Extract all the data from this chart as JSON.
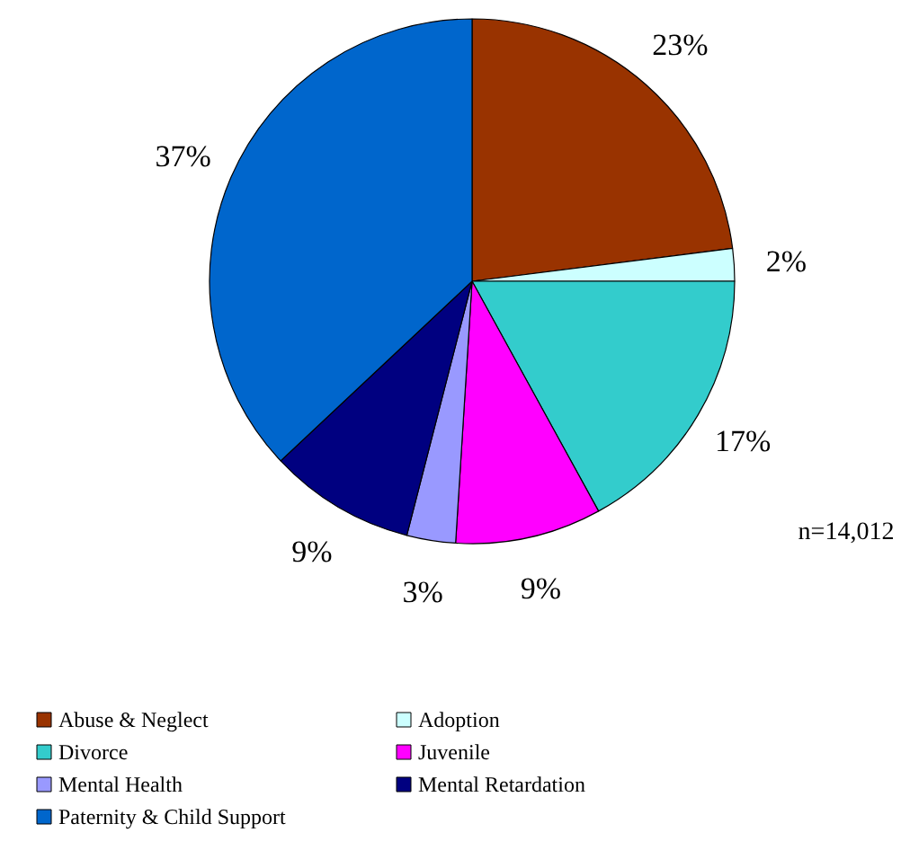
{
  "chart_data": {
    "type": "pie",
    "categories": [
      "Abuse & Neglect",
      "Adoption",
      "Divorce",
      "Juvenile",
      "Mental Health",
      "Mental Retardation",
      "Paternity & Child Support"
    ],
    "values": [
      23,
      2,
      17,
      9,
      3,
      9,
      37
    ],
    "colors": [
      "#993300",
      "#ccffff",
      "#33cccc",
      "#ff00ff",
      "#9999ff",
      "#000080",
      "#0066cc"
    ],
    "value_labels": [
      "23%",
      "2%",
      "17%",
      "9%",
      "3%",
      "9%",
      "37%"
    ],
    "annotations": [
      "n=14,012"
    ],
    "legend": "bottom"
  }
}
